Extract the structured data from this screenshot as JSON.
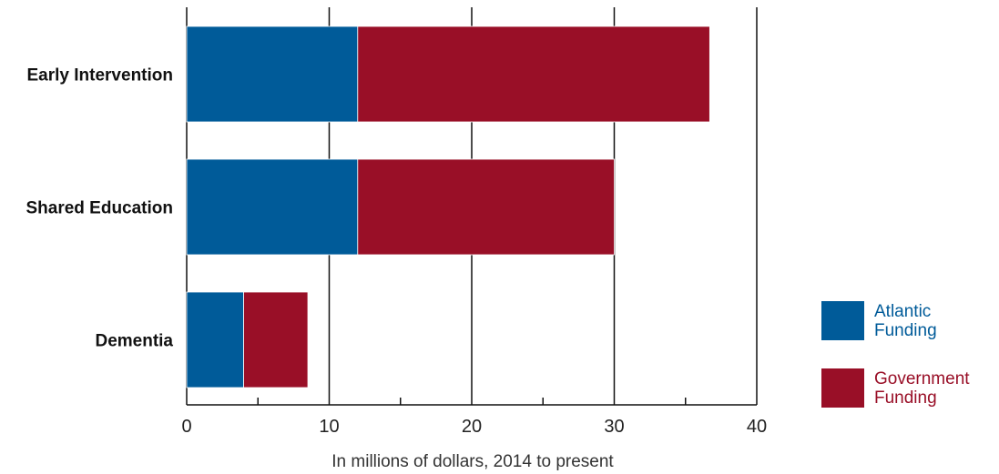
{
  "chart_data": {
    "type": "bar",
    "orientation": "horizontal",
    "stacked": true,
    "categories": [
      "Early Intervention",
      "Shared Education",
      "Dementia"
    ],
    "series": [
      {
        "name": "Atlantic Funding",
        "label_lines": [
          "Atlantic",
          "Funding"
        ],
        "color": "#005b99",
        "values": [
          12,
          12,
          4
        ]
      },
      {
        "name": "Government Funding",
        "label_lines": [
          "Government",
          "Funding"
        ],
        "color": "#990f27",
        "values": [
          24.7,
          18,
          4.5
        ]
      }
    ],
    "xlabel": "In millions of dollars, 2014 to present",
    "xlim": [
      0,
      40
    ],
    "major_ticks": [
      0,
      10,
      20,
      30,
      40
    ],
    "minor_ticks": [
      5,
      15,
      25,
      35
    ],
    "grid": "vertical lines at major ticks",
    "legend_position": "right"
  }
}
